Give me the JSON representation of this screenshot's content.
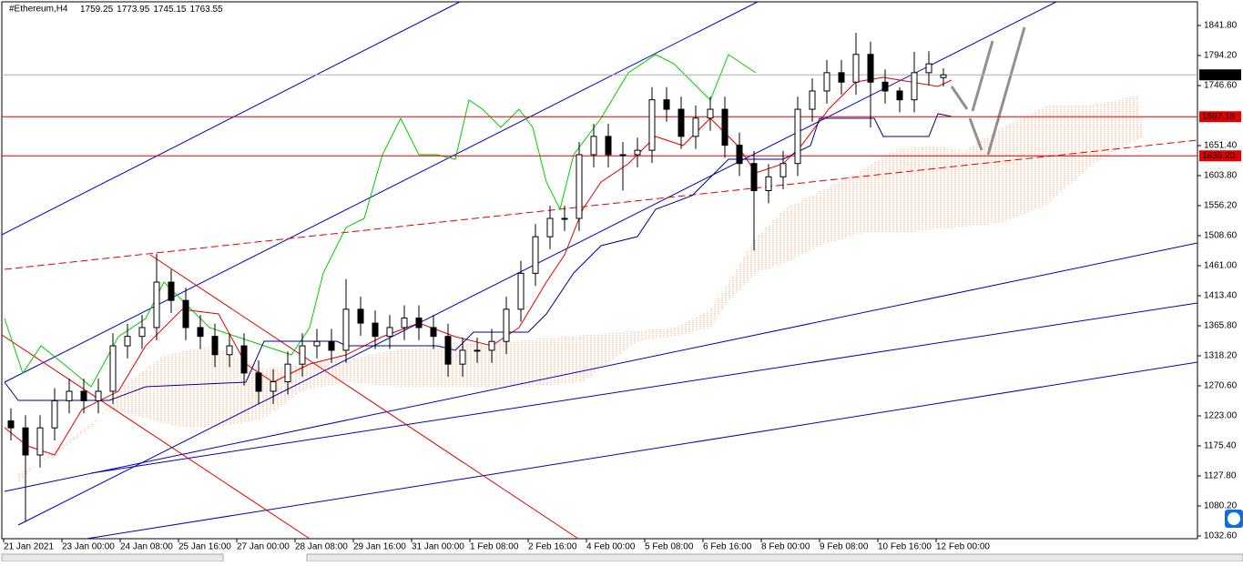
{
  "chart_data": {
    "type": "candlestick",
    "title": "#Ethereum,H4",
    "header_values": [
      {
        "value": 1759.25,
        "label": "1759.25"
      },
      {
        "value": 1773.95,
        "label": "1773.95"
      },
      {
        "value": 1745.15,
        "label": "1745.15"
      },
      {
        "value": 1763.55,
        "label": "1763.55"
      }
    ],
    "x_labels": [
      "21 Jan 2021",
      "23 Jan 00:00",
      "24 Jan 08:00",
      "25 Jan 16:00",
      "27 Jan 00:00",
      "28 Jan 08:00",
      "29 Jan 16:00",
      "31 Jan 00:00",
      "1 Feb 08:00",
      "2 Feb 16:00",
      "4 Feb 00:00",
      "5 Feb 08:00",
      "6 Feb 16:00",
      "8 Feb 00:00",
      "9 Feb 08:00",
      "10 Feb 16:00",
      "12 Feb 00:00"
    ],
    "open": [
      1215,
      1204,
      1161,
      1204,
      1247,
      1262,
      1247,
      1262,
      1334,
      1349,
      1363,
      1435,
      1406,
      1363,
      1349,
      1320,
      1334,
      1291,
      1262,
      1277,
      1305,
      1334,
      1341,
      1327,
      1392,
      1370,
      1349,
      1363,
      1378,
      1363,
      1349,
      1305,
      1327,
      1327,
      1341,
      1392,
      1449,
      1507,
      1536,
      1536,
      1637,
      1666,
      1637,
      1637,
      1644,
      1724,
      1709,
      1666,
      1695,
      1709,
      1652,
      1623,
      1580,
      1602,
      1623,
      1709,
      1738,
      1767,
      1752,
      1796,
      1752,
      1738,
      1724,
      1767,
      1759.25
    ],
    "high": [
      1235,
      1224,
      1224,
      1267,
      1282,
      1282,
      1282,
      1354,
      1369,
      1383,
      1480,
      1455,
      1426,
      1383,
      1369,
      1354,
      1354,
      1311,
      1297,
      1325,
      1354,
      1361,
      1361,
      1440,
      1412,
      1390,
      1383,
      1398,
      1398,
      1383,
      1369,
      1347,
      1347,
      1361,
      1412,
      1469,
      1527,
      1556,
      1556,
      1657,
      1686,
      1686,
      1657,
      1664,
      1744,
      1744,
      1729,
      1715,
      1729,
      1729,
      1672,
      1643,
      1622,
      1643,
      1729,
      1758,
      1787,
      1787,
      1830,
      1816,
      1772,
      1744,
      1800,
      1801,
      1773.95
    ],
    "low": [
      1184,
      1055,
      1141,
      1184,
      1227,
      1227,
      1227,
      1242,
      1314,
      1329,
      1343,
      1386,
      1343,
      1329,
      1300,
      1300,
      1271,
      1242,
      1242,
      1257,
      1285,
      1314,
      1307,
      1307,
      1350,
      1329,
      1329,
      1343,
      1343,
      1329,
      1285,
      1285,
      1307,
      1307,
      1321,
      1372,
      1429,
      1487,
      1516,
      1516,
      1617,
      1617,
      1580,
      1617,
      1624,
      1689,
      1646,
      1646,
      1675,
      1632,
      1603,
      1485,
      1560,
      1582,
      1603,
      1689,
      1718,
      1732,
      1732,
      1680,
      1718,
      1704,
      1704,
      1747,
      1745.15
    ],
    "close": [
      1204,
      1161,
      1204,
      1247,
      1262,
      1247,
      1262,
      1334,
      1349,
      1363,
      1435,
      1406,
      1363,
      1349,
      1320,
      1334,
      1291,
      1262,
      1277,
      1305,
      1334,
      1341,
      1327,
      1392,
      1370,
      1349,
      1363,
      1378,
      1363,
      1349,
      1305,
      1327,
      1327,
      1341,
      1392,
      1449,
      1507,
      1536,
      1536,
      1637,
      1666,
      1637,
      1637,
      1644,
      1724,
      1709,
      1666,
      1695,
      1709,
      1652,
      1623,
      1580,
      1602,
      1623,
      1709,
      1738,
      1767,
      1752,
      1796,
      1752,
      1738,
      1724,
      1767,
      1781,
      1763.55
    ],
    "up_color": "#ffffff",
    "down_color": "#000000",
    "ylim": [
      1028.3,
      1879.3
    ],
    "yticks": [
      {
        "value": 1841.8,
        "label": "1841.80"
      },
      {
        "value": 1794.2,
        "label": "1794.20"
      },
      {
        "value": 1746.6,
        "label": "1746.60"
      },
      {
        "value": 1651.4,
        "label": "1651.40"
      },
      {
        "value": 1603.8,
        "label": "1603.80"
      },
      {
        "value": 1556.2,
        "label": "1556.20"
      },
      {
        "value": 1508.6,
        "label": "1508.60"
      },
      {
        "value": 1461,
        "label": "1461.00"
      },
      {
        "value": 1413.4,
        "label": "1413.40"
      },
      {
        "value": 1365.8,
        "label": "1365.80"
      },
      {
        "value": 1318.2,
        "label": "1318.20"
      },
      {
        "value": 1270.6,
        "label": "1270.60"
      },
      {
        "value": 1223,
        "label": "1223.00"
      },
      {
        "value": 1175.4,
        "label": "1175.40"
      },
      {
        "value": 1127.8,
        "label": "1127.80"
      },
      {
        "value": 1080.2,
        "label": "1080.20"
      },
      {
        "value": 1032.6,
        "label": "1032.60"
      }
    ],
    "price_line": {
      "value": 1763.55,
      "label": "1763.55"
    },
    "levels": [
      {
        "value": 1697.18,
        "label": "1697.18",
        "color": "#e00000"
      },
      {
        "value": 1635.2,
        "label": "1635.20",
        "color": "#e00000"
      }
    ]
  }
}
